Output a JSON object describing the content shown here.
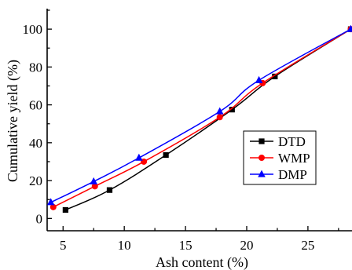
{
  "chart_data": {
    "type": "line",
    "title": "",
    "xlabel": "Ash   content (%)",
    "ylabel": "Cumulative  yield (%)",
    "xlim": [
      3.7,
      28.6
    ],
    "ylim": [
      -6.5,
      110
    ],
    "xticks": [
      5,
      10,
      15,
      20,
      25
    ],
    "yticks": [
      0,
      20,
      40,
      60,
      80,
      100
    ],
    "grid": false,
    "legend_position": "center-right",
    "series": [
      {
        "name": "DTD",
        "color": "#000000",
        "marker": "square",
        "x": [
          5.2,
          8.8,
          13.4,
          18.8,
          22.3,
          28.5
        ],
        "y": [
          4.5,
          15.0,
          33.5,
          57.5,
          75.0,
          100.0
        ]
      },
      {
        "name": "WMP",
        "color": "#ff0000",
        "marker": "circle",
        "x": [
          4.2,
          7.6,
          11.6,
          17.8,
          21.3,
          28.5
        ],
        "y": [
          6.0,
          17.0,
          30.0,
          53.5,
          71.5,
          100.0
        ]
      },
      {
        "name": "DMP",
        "color": "#0000ff",
        "marker": "triangle",
        "x": [
          4.0,
          7.5,
          11.2,
          17.8,
          21.0,
          28.5
        ],
        "y": [
          8.5,
          19.5,
          32.0,
          56.5,
          73.0,
          100.0
        ]
      }
    ]
  }
}
